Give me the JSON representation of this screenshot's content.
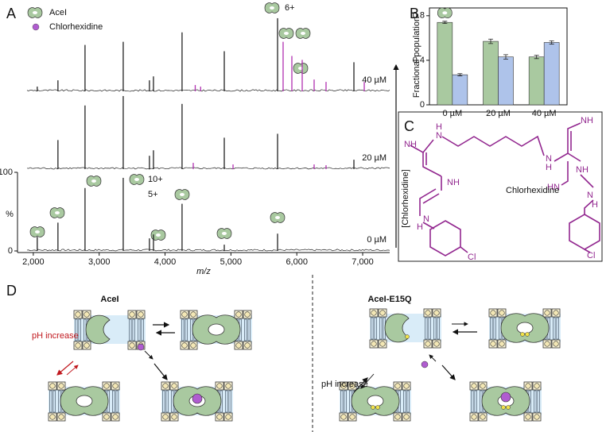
{
  "panels": [
    "A",
    "B",
    "C",
    "D"
  ],
  "chart_data": [
    {
      "type": "spectrum",
      "xlabel": "m/z",
      "xlim": [
        1760,
        7410
      ],
      "xticks": [
        {
          "value": 2000,
          "label": "2,000"
        },
        {
          "value": 3000,
          "label": "3,000"
        },
        {
          "value": 4000,
          "label": "4,000"
        },
        {
          "value": 5000,
          "label": "5,000"
        },
        {
          "value": 6000,
          "label": "6,000"
        },
        {
          "value": 7000,
          "label": "7,000"
        }
      ],
      "ylabel": "%",
      "ylim": [
        0,
        100
      ],
      "yticks": [
        0,
        100
      ],
      "legend": [
        "AceI",
        "Chlorhexidine"
      ],
      "annotations": [
        "6+",
        "10+",
        "5+"
      ],
      "arrow_label": "[Chlorhexidine]",
      "series": [
        {
          "name": "0 µM",
          "color": "#222222",
          "x": [
            2060,
            2374,
            2785,
            3365,
            3763,
            3824,
            4258,
            4899,
            5708
          ],
          "values": [
            18,
            36,
            80,
            93,
            16,
            21,
            60,
            8,
            22
          ],
          "bound": {
            "color": "#b02fb0",
            "x": [],
            "values": []
          }
        },
        {
          "name": "20 µM",
          "color": "#222222",
          "x": [
            2374,
            2785,
            3365,
            3763,
            3824,
            4258,
            4899,
            5708,
            6867
          ],
          "values": [
            37,
            81,
            93,
            17,
            24,
            83,
            40,
            45,
            12
          ],
          "bound": {
            "color": "#b02fb0",
            "x": [
              4428,
              5032,
              6263,
              6444
            ],
            "values": [
              8,
              6,
              6,
              5
            ]
          }
        },
        {
          "name": "40 µM",
          "color": "#222222",
          "x": [
            2060,
            2374,
            2785,
            3365,
            3763,
            3824,
            4258,
            4899,
            5708,
            6867
          ],
          "values": [
            6,
            14,
            59,
            63,
            14,
            19,
            75,
            51,
            93,
            37
          ],
          "bound": {
            "color": "#b02fb0",
            "x": [
              4458,
              4540,
              5792,
              5925,
              6082,
              6263,
              6444,
              7024
            ],
            "values": [
              8,
              6,
              63,
              45,
              40,
              15,
              12,
              12
            ]
          }
        }
      ]
    },
    {
      "type": "bar",
      "ylabel": "Fractional population",
      "categories": [
        "0 µM",
        "20 µM",
        "40 µM"
      ],
      "ylim": [
        0,
        0.87
      ],
      "yticks": [
        0,
        0.4,
        0.8
      ],
      "series": [
        {
          "color": "#a9c9a0",
          "values": [
            0.74,
            0.57,
            0.43
          ],
          "errors": [
            0.01,
            0.02,
            0.015
          ]
        },
        {
          "color": "#aec3ea",
          "values": [
            0.27,
            0.43,
            0.56
          ],
          "errors": [
            0.01,
            0.02,
            0.015
          ]
        }
      ]
    }
  ],
  "structure": {
    "label": "Chlorhexidine",
    "atoms": [
      "H",
      "N",
      "NH",
      "NH",
      "H",
      "N",
      "N",
      "H",
      "NH",
      "HN",
      "NH",
      "H",
      "N",
      "Cl",
      "Cl"
    ]
  },
  "diagram": {
    "left_title": "AceI",
    "right_title": "AceI-E15Q",
    "left_condition": "pH increase",
    "right_condition": "pH increase"
  }
}
